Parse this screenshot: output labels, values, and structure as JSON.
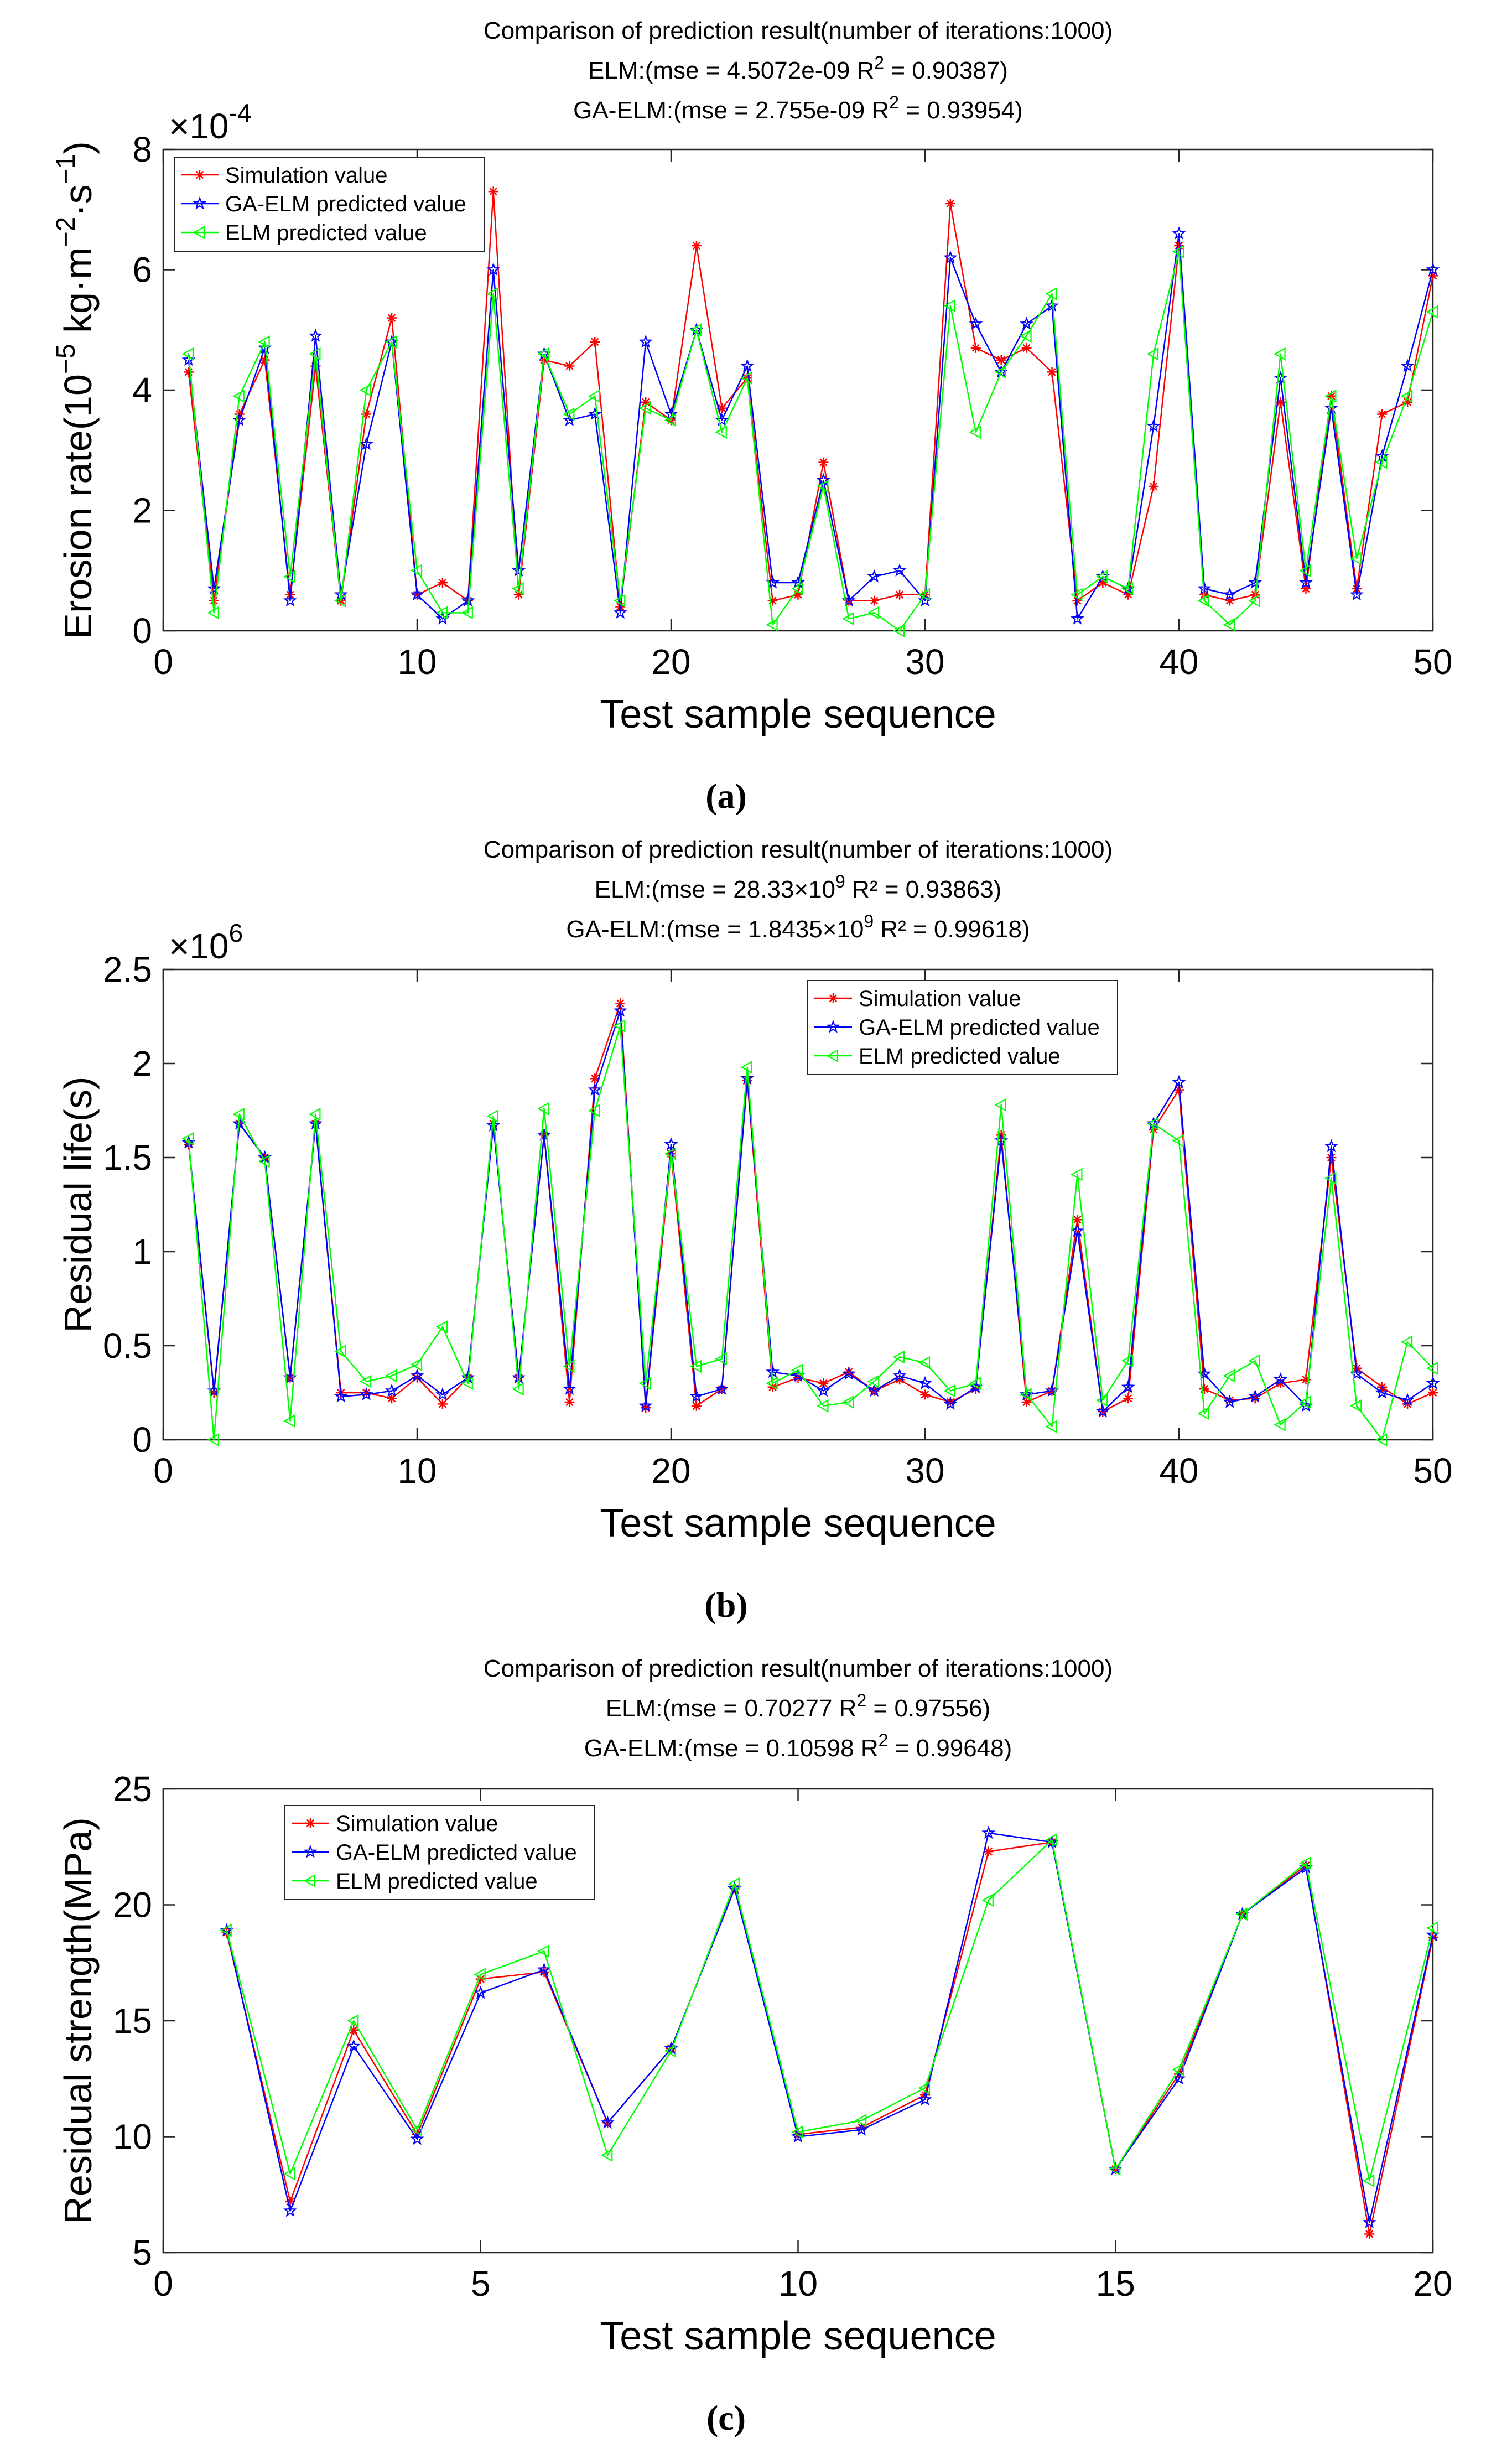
{
  "figure": {
    "panels": [
      {
        "id": "a",
        "caption": "(a)",
        "title_lines": [
          {
            "main": "Comparison of prediction result(number of iterations:1000)",
            "sup": "",
            "post": ""
          },
          {
            "main": "ELM:(mse = 4.5072e-09 R",
            "sup": "2",
            "post": " = 0.90387)"
          },
          {
            "main": "GA-ELM:(mse = 2.755e-09 R",
            "sup": "2",
            "post": " = 0.93954)"
          }
        ],
        "xlabel": "Test sample sequence",
        "ylabel_parts": [
          {
            "text": "Erosion rate(10",
            "sup": false
          },
          {
            "text": "−5",
            "sup": true
          },
          {
            "text": " kg·m",
            "sup": false
          },
          {
            "text": "−2",
            "sup": true
          },
          {
            "text": "·s",
            "sup": false
          },
          {
            "text": "−1",
            "sup": true
          },
          {
            "text": ")",
            "sup": false
          }
        ],
        "exponent_base": "×10",
        "exponent_power": "-4",
        "legend_pos": "top-left"
      },
      {
        "id": "b",
        "caption": "(b)",
        "title_lines": [
          {
            "main": "Comparison of prediction result(number of iterations:1000)",
            "sup": "",
            "post": ""
          },
          {
            "main": "ELM:(mse = 28.33×10",
            "sup": "9",
            "post": " R² = 0.93863)"
          },
          {
            "main": "GA-ELM:(mse = 1.8435×10",
            "sup": "9",
            "post": " R² = 0.99618)"
          }
        ],
        "xlabel": "Test sample sequence",
        "ylabel_parts": [
          {
            "text": "Residual life(s)",
            "sup": false
          }
        ],
        "exponent_base": "×10",
        "exponent_power": "6",
        "legend_pos": "top-center"
      },
      {
        "id": "c",
        "caption": "(c)",
        "title_lines": [
          {
            "main": "Comparison of prediction result(number of iterations:1000)",
            "sup": "",
            "post": ""
          },
          {
            "main": "ELM:(mse = 0.70277 R",
            "sup": "2",
            "post": " = 0.97556)"
          },
          {
            "main": "GA-ELM:(mse = 0.10598 R",
            "sup": "2",
            "post": " = 0.99648)"
          }
        ],
        "xlabel": "Test sample sequence",
        "ylabel_parts": [
          {
            "text": "Residual strength(MPa)",
            "sup": false
          }
        ],
        "exponent_base": "",
        "exponent_power": "",
        "legend_pos": "top-left"
      }
    ]
  },
  "colors": {
    "simulation": "#ff0000",
    "ga_elm": "#0000ff",
    "elm": "#00ff00",
    "axes": "#262626",
    "background": "#ffffff"
  },
  "chart_data": [
    {
      "type": "line",
      "title": "Comparison of prediction result(number of iterations:1000)",
      "xlabel": "Test sample sequence",
      "ylabel": "Erosion rate(10−5 kg·m−2·s−1)",
      "y_scale_note": "×10^-4",
      "xlim": [
        0,
        50
      ],
      "ylim": [
        0,
        8
      ],
      "xticks": [
        0,
        10,
        20,
        30,
        40,
        50
      ],
      "yticks": [
        0,
        2,
        4,
        6,
        8
      ],
      "grid": false,
      "legend_position": "top-left",
      "x": [
        1,
        2,
        3,
        4,
        5,
        6,
        7,
        8,
        9,
        10,
        11,
        12,
        13,
        14,
        15,
        16,
        17,
        18,
        19,
        20,
        21,
        22,
        23,
        24,
        25,
        26,
        27,
        28,
        29,
        30,
        31,
        32,
        33,
        34,
        35,
        36,
        37,
        38,
        39,
        40,
        41,
        42,
        43,
        44,
        45,
        46,
        47,
        48,
        49,
        50
      ],
      "series": [
        {
          "name": "Simulation value",
          "marker": "asterisk",
          "values": [
            4.3,
            0.5,
            3.6,
            4.5,
            0.6,
            4.4,
            0.5,
            3.6,
            5.2,
            0.6,
            0.8,
            0.5,
            7.3,
            0.6,
            4.5,
            4.4,
            4.8,
            0.4,
            3.8,
            3.5,
            6.4,
            3.7,
            4.2,
            0.5,
            0.6,
            2.8,
            0.5,
            0.5,
            0.6,
            0.6,
            7.1,
            4.7,
            4.5,
            4.7,
            4.3,
            0.5,
            0.8,
            0.6,
            2.4,
            6.4,
            0.6,
            0.5,
            0.6,
            3.8,
            0.7,
            3.9,
            0.7,
            3.6,
            3.8,
            5.9
          ]
        },
        {
          "name": "GA-ELM predicted value",
          "marker": "pentagram",
          "values": [
            4.5,
            0.7,
            3.5,
            4.7,
            0.5,
            4.9,
            0.6,
            3.1,
            4.8,
            0.6,
            0.2,
            0.5,
            6.0,
            1.0,
            4.6,
            3.5,
            3.6,
            0.3,
            4.8,
            3.6,
            5.0,
            3.5,
            4.4,
            0.8,
            0.8,
            2.5,
            0.5,
            0.9,
            1.0,
            0.5,
            6.2,
            5.1,
            4.3,
            5.1,
            5.4,
            0.2,
            0.9,
            0.7,
            3.4,
            6.6,
            0.7,
            0.6,
            0.8,
            4.2,
            0.8,
            3.7,
            0.6,
            2.9,
            4.4,
            6.0
          ]
        },
        {
          "name": "ELM predicted value",
          "marker": "triangle-left",
          "values": [
            4.6,
            0.3,
            3.9,
            4.8,
            0.9,
            4.6,
            0.5,
            4.0,
            4.8,
            1.0,
            0.3,
            0.3,
            5.6,
            0.7,
            4.6,
            3.6,
            3.9,
            0.5,
            3.7,
            3.5,
            5.0,
            3.3,
            4.2,
            0.1,
            0.7,
            2.4,
            0.2,
            0.3,
            0.0,
            0.6,
            5.4,
            3.3,
            4.3,
            4.9,
            5.6,
            0.6,
            0.9,
            0.7,
            4.6,
            6.3,
            0.5,
            0.1,
            0.5,
            4.6,
            1.0,
            3.9,
            1.2,
            2.8,
            3.9,
            5.3
          ]
        }
      ]
    },
    {
      "type": "line",
      "title": "Comparison of prediction result(number of iterations:1000)",
      "xlabel": "Test sample sequence",
      "ylabel": "Residual life(s)",
      "y_scale_note": "×10^6",
      "xlim": [
        0,
        50
      ],
      "ylim": [
        0,
        2.5
      ],
      "xticks": [
        0,
        10,
        20,
        30,
        40,
        50
      ],
      "yticks": [
        0,
        0.5,
        1,
        1.5,
        2,
        2.5
      ],
      "grid": false,
      "legend_position": "top-center",
      "x": [
        1,
        2,
        3,
        4,
        5,
        6,
        7,
        8,
        9,
        10,
        11,
        12,
        13,
        14,
        15,
        16,
        17,
        18,
        19,
        20,
        21,
        22,
        23,
        24,
        25,
        26,
        27,
        28,
        29,
        30,
        31,
        32,
        33,
        34,
        35,
        36,
        37,
        38,
        39,
        40,
        41,
        42,
        43,
        44,
        45,
        46,
        47,
        48,
        49,
        50
      ],
      "series": [
        {
          "name": "Simulation value",
          "marker": "asterisk",
          "values": [
            1.57,
            0.25,
            1.68,
            1.5,
            0.33,
            1.68,
            0.25,
            0.25,
            0.22,
            0.33,
            0.19,
            0.33,
            1.68,
            0.33,
            1.62,
            0.2,
            1.92,
            2.32,
            0.17,
            1.52,
            0.18,
            0.27,
            1.91,
            0.28,
            0.33,
            0.3,
            0.36,
            0.26,
            0.32,
            0.24,
            0.2,
            0.27,
            1.62,
            0.2,
            0.26,
            1.17,
            0.15,
            0.22,
            1.65,
            1.86,
            0.27,
            0.21,
            0.22,
            0.3,
            0.32,
            1.5,
            0.38,
            0.28,
            0.19,
            0.25
          ]
        },
        {
          "name": "GA-ELM predicted value",
          "marker": "pentagram",
          "values": [
            1.58,
            0.26,
            1.68,
            1.5,
            0.33,
            1.68,
            0.23,
            0.24,
            0.26,
            0.34,
            0.24,
            0.33,
            1.67,
            0.33,
            1.62,
            0.27,
            1.86,
            2.28,
            0.18,
            1.57,
            0.23,
            0.27,
            1.92,
            0.36,
            0.34,
            0.26,
            0.35,
            0.26,
            0.34,
            0.3,
            0.19,
            0.28,
            1.59,
            0.24,
            0.26,
            1.11,
            0.15,
            0.28,
            1.68,
            1.9,
            0.35,
            0.2,
            0.23,
            0.32,
            0.18,
            1.56,
            0.35,
            0.25,
            0.21,
            0.3
          ]
        },
        {
          "name": "ELM predicted value",
          "marker": "triangle-left",
          "values": [
            1.6,
            0.0,
            1.73,
            1.48,
            0.1,
            1.73,
            0.47,
            0.31,
            0.34,
            0.4,
            0.6,
            0.3,
            1.72,
            0.27,
            1.76,
            0.39,
            1.75,
            2.2,
            0.3,
            1.52,
            0.39,
            0.43,
            1.98,
            0.3,
            0.37,
            0.18,
            0.2,
            0.31,
            0.44,
            0.41,
            0.26,
            0.3,
            1.78,
            0.24,
            0.07,
            1.41,
            0.21,
            0.42,
            1.68,
            1.59,
            0.14,
            0.34,
            0.42,
            0.08,
            0.2,
            1.39,
            0.18,
            0.0,
            0.52,
            0.38
          ]
        }
      ]
    },
    {
      "type": "line",
      "title": "Comparison of prediction result(number of iterations:1000)",
      "xlabel": "Test sample sequence",
      "ylabel": "Residual strength(MPa)",
      "xlim": [
        0,
        20
      ],
      "ylim": [
        5,
        25
      ],
      "xticks": [
        0,
        5,
        10,
        15,
        20
      ],
      "yticks": [
        5,
        10,
        15,
        20,
        25
      ],
      "grid": false,
      "legend_position": "top-left",
      "x": [
        1,
        2,
        3,
        4,
        5,
        6,
        7,
        8,
        9,
        10,
        11,
        12,
        13,
        14,
        15,
        16,
        17,
        18,
        19,
        20
      ],
      "series": [
        {
          "name": "Simulation value",
          "marker": "asterisk",
          "values": [
            18.8,
            7.2,
            14.6,
            10.1,
            16.8,
            17.1,
            10.6,
            13.8,
            20.7,
            10.1,
            10.4,
            11.8,
            22.3,
            22.7,
            8.6,
            12.7,
            19.6,
            21.7,
            5.8,
            18.6
          ]
        },
        {
          "name": "GA-ELM predicted value",
          "marker": "pentagram",
          "values": [
            18.9,
            6.8,
            13.9,
            9.9,
            16.2,
            17.2,
            10.6,
            13.8,
            20.7,
            10.0,
            10.3,
            11.6,
            23.1,
            22.7,
            8.6,
            12.5,
            19.6,
            21.6,
            6.3,
            18.7
          ]
        },
        {
          "name": "ELM predicted value",
          "marker": "triangle-left",
          "values": [
            18.9,
            8.4,
            15.0,
            10.3,
            17.0,
            18.0,
            9.2,
            13.7,
            20.9,
            10.2,
            10.7,
            12.1,
            20.2,
            22.8,
            8.6,
            12.9,
            19.6,
            21.8,
            8.1,
            19.0
          ]
        }
      ]
    }
  ]
}
